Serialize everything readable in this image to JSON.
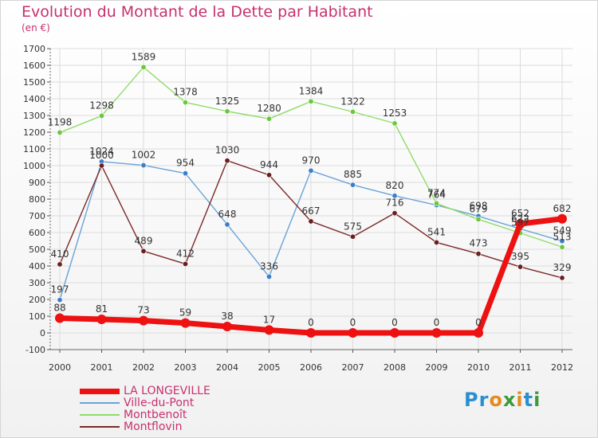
{
  "title": "Evolution du Montant de la Dette par Habitant",
  "unit_label": "(en €)",
  "logo": {
    "text": "Proxiti",
    "letter_colors": [
      "#2a8fd0",
      "#2a8fd0",
      "#e7891d",
      "#3c9a3a",
      "#e7891d",
      "#2a8fd0",
      "#3c9a3a"
    ]
  },
  "colors": {
    "title": "#c8306e",
    "axis_text": "#333333",
    "grid": "#dcdcdc"
  },
  "chart_data": {
    "type": "line",
    "title": "Evolution du Montant de la Dette par Habitant",
    "ylabel": "(en €)",
    "xlabel": "",
    "x": [
      "2000",
      "2001",
      "2002",
      "2003",
      "2004",
      "2005",
      "2006",
      "2007",
      "2008",
      "2009",
      "2010",
      "2011",
      "2012"
    ],
    "ylim": [
      -100,
      1700
    ],
    "yticks": [
      -100,
      0,
      100,
      200,
      300,
      400,
      500,
      600,
      700,
      800,
      900,
      1000,
      1100,
      1200,
      1300,
      1400,
      1500,
      1600,
      1700
    ],
    "grid": true,
    "legend_position": "bottom-left",
    "series": [
      {
        "name": "LA LONGEVILLE",
        "color": "#ee1111",
        "width": 7,
        "marker": "#ee1111",
        "values": [
          88,
          81,
          73,
          59,
          38,
          17,
          0,
          0,
          0,
          0,
          0,
          652,
          682
        ],
        "value_labels": [
          "88",
          "81",
          "73",
          "59",
          "38",
          "17",
          "0",
          "0",
          "0",
          "0",
          "0",
          "652",
          "682"
        ]
      },
      {
        "name": "Ville-du-Pont",
        "color": "#6aa3d8",
        "width": 1.4,
        "marker": "#3a80c8",
        "values": [
          197,
          1024,
          1002,
          954,
          648,
          336,
          970,
          885,
          820,
          764,
          698,
          622,
          549
        ],
        "value_labels": [
          "197",
          "1024",
          "1002",
          "954",
          "648",
          "336",
          "970",
          "885",
          "820",
          "764",
          "698",
          "622",
          "549"
        ]
      },
      {
        "name": "Montbenoît",
        "color": "#8fdc6a",
        "width": 1.4,
        "marker": "#6cc83a",
        "values": [
          1198,
          1298,
          1589,
          1378,
          1325,
          1280,
          1384,
          1322,
          1253,
          774,
          679,
          597,
          513
        ],
        "value_labels": [
          "1198",
          "1298",
          "1589",
          "1378",
          "1325",
          "1280",
          "1384",
          "1322",
          "1253",
          "774",
          "679",
          "597",
          "513"
        ]
      },
      {
        "name": "Montflovin",
        "color": "#7a2a2a",
        "width": 1.4,
        "marker": "#6a1f1f",
        "values": [
          410,
          1000,
          489,
          412,
          1030,
          944,
          667,
          575,
          716,
          541,
          473,
          395,
          329
        ],
        "value_labels": [
          "410",
          "1000",
          "489",
          "412",
          "1030",
          "944",
          "667",
          "575",
          "716",
          "541",
          "473",
          "395",
          "329"
        ]
      }
    ]
  }
}
